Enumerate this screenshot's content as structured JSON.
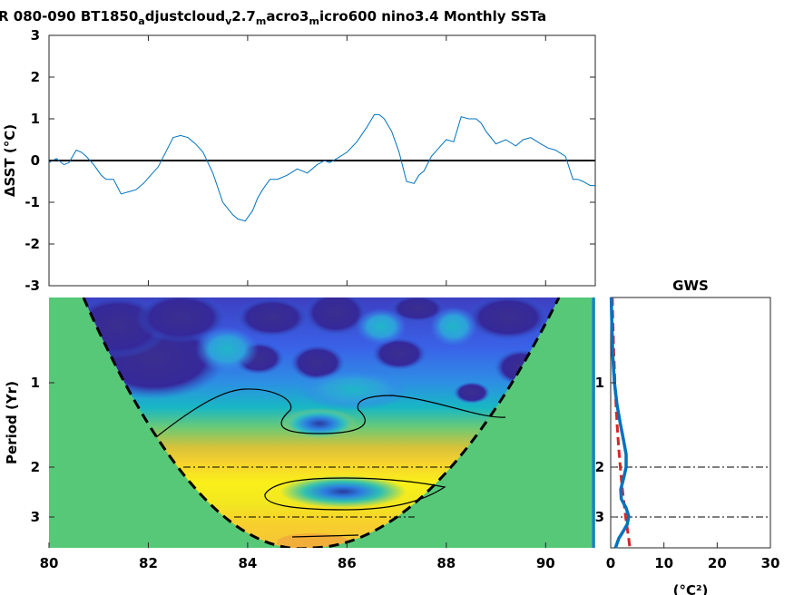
{
  "chart_data": [
    {
      "type": "line",
      "title_parts": [
        "R 080-090 BT1850",
        "a",
        "djustcloud",
        "v",
        "2.7",
        "m",
        "acro3",
        "m",
        "icro600 nino3.4 Monthly SSTa"
      ],
      "ylabel": "ΔSST (°C)",
      "xlim": [
        80,
        91
      ],
      "ylim": [
        -3,
        3
      ],
      "yticks": [
        "3",
        "2",
        "1",
        "0",
        "-1",
        "-2",
        "-3"
      ],
      "zero_line": true,
      "series": [
        {
          "color": "#0072BD",
          "x": [
            80.0,
            80.15,
            80.3,
            80.4,
            80.55,
            80.65,
            80.75,
            80.9,
            81.05,
            81.15,
            81.3,
            81.45,
            81.6,
            81.75,
            81.9,
            82.05,
            82.2,
            82.35,
            82.5,
            82.65,
            82.8,
            82.95,
            83.1,
            83.3,
            83.5,
            83.7,
            83.8,
            83.95,
            84.1,
            84.2,
            84.3,
            84.45,
            84.6,
            84.8,
            85.0,
            85.2,
            85.4,
            85.55,
            85.65,
            85.8,
            86.0,
            86.2,
            86.4,
            86.55,
            86.65,
            86.75,
            86.9,
            87.05,
            87.2,
            87.35,
            87.45,
            87.55,
            87.7,
            87.85,
            88.0,
            88.15,
            88.3,
            88.45,
            88.6,
            88.7,
            88.8,
            89.0,
            89.2,
            89.4,
            89.55,
            89.7,
            89.9,
            90.05,
            90.2,
            90.4,
            90.55,
            90.65,
            90.75,
            90.9,
            91.0
          ],
          "y": [
            -0.05,
            0.05,
            -0.1,
            -0.05,
            0.25,
            0.2,
            0.1,
            -0.1,
            -0.35,
            -0.45,
            -0.45,
            -0.8,
            -0.75,
            -0.7,
            -0.55,
            -0.35,
            -0.15,
            0.2,
            0.55,
            0.6,
            0.55,
            0.4,
            0.2,
            -0.3,
            -1.0,
            -1.3,
            -1.4,
            -1.45,
            -1.2,
            -0.9,
            -0.7,
            -0.45,
            -0.45,
            -0.35,
            -0.2,
            -0.3,
            -0.1,
            0.0,
            -0.05,
            0.05,
            0.2,
            0.45,
            0.8,
            1.1,
            1.1,
            1.0,
            0.7,
            0.2,
            -0.5,
            -0.55,
            -0.35,
            -0.25,
            0.1,
            0.3,
            0.5,
            0.45,
            1.05,
            1.0,
            1.0,
            0.9,
            0.7,
            0.4,
            0.5,
            0.35,
            0.5,
            0.55,
            0.4,
            0.3,
            0.25,
            0.1,
            -0.45,
            -0.45,
            -0.5,
            -0.6,
            -0.6
          ]
        }
      ]
    },
    {
      "type": "heatmap",
      "xlim": [
        80,
        91
      ],
      "xticks": [
        "80",
        "82",
        "84",
        "86",
        "88",
        "90"
      ],
      "ylabel": "Period (Yr)",
      "yticks": [
        "1",
        "2",
        "3"
      ],
      "colormap": "parula",
      "ref_lines_years": [
        2,
        3
      ]
    },
    {
      "type": "line",
      "title": "GWS",
      "xlabel": "(°C²)",
      "xlim": [
        0,
        30
      ],
      "xticks": [
        "0",
        "10",
        "20",
        "30"
      ],
      "yticks": [
        "1",
        "2",
        "3"
      ],
      "series": [
        {
          "color": "#0072BD",
          "style": "solid",
          "period": [
            0.4,
            0.6,
            0.8,
            1.0,
            1.2,
            1.4,
            1.6,
            1.8,
            2.0,
            2.2,
            2.4,
            2.6,
            2.8,
            3.0,
            3.2,
            3.4,
            3.6,
            3.9
          ],
          "power": [
            0.1,
            0.2,
            0.4,
            0.7,
            1.2,
            1.8,
            2.4,
            2.9,
            2.9,
            2.4,
            1.9,
            2.0,
            2.9,
            3.4,
            3.1,
            2.3,
            1.5,
            0.9
          ]
        },
        {
          "color": "#D62728",
          "style": "dashed",
          "period": [
            0.4,
            0.6,
            0.8,
            1.0,
            1.2,
            1.4,
            1.6,
            1.8,
            2.0,
            2.2,
            2.4,
            2.6,
            2.8,
            3.0,
            3.2,
            3.4,
            3.6,
            3.9
          ],
          "power": [
            0.3,
            0.4,
            0.6,
            0.8,
            1.0,
            1.2,
            1.4,
            1.6,
            1.8,
            2.0,
            2.2,
            2.4,
            2.6,
            2.8,
            3.0,
            3.2,
            3.4,
            3.6
          ]
        }
      ]
    }
  ]
}
